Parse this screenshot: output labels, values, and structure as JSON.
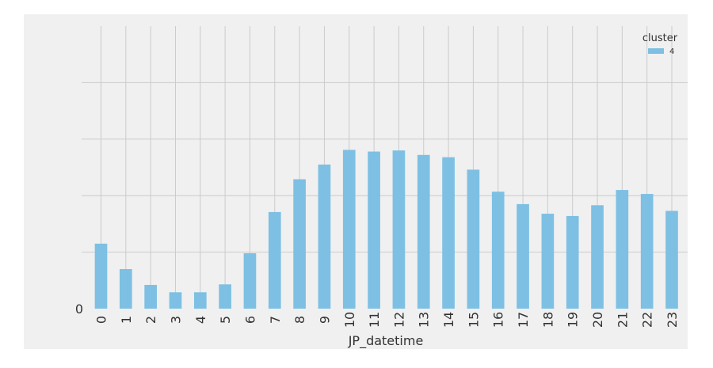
{
  "chart_data": {
    "type": "bar",
    "categories": [
      "0",
      "1",
      "2",
      "3",
      "4",
      "5",
      "6",
      "7",
      "8",
      "9",
      "10",
      "11",
      "12",
      "13",
      "14",
      "15",
      "16",
      "17",
      "18",
      "19",
      "20",
      "21",
      "22",
      "23"
    ],
    "series": [
      {
        "name": "4",
        "color": "#7dc0e3",
        "values": [
          1.15,
          0.7,
          0.42,
          0.29,
          0.29,
          0.43,
          0.98,
          1.71,
          2.29,
          2.55,
          2.81,
          2.78,
          2.8,
          2.72,
          2.68,
          2.46,
          2.07,
          1.85,
          1.68,
          1.64,
          1.83,
          2.1,
          2.03,
          1.73
        ]
      }
    ],
    "xlabel": "JP_datetime",
    "ylabel": "",
    "ylim": [
      0,
      5
    ],
    "yticks": [
      0,
      1,
      2,
      3,
      4
    ],
    "ytick_labels": [
      "0",
      "",
      "",
      "",
      ""
    ],
    "grid": true,
    "legend": {
      "title": "cluster",
      "placement": "top-right"
    },
    "colors": {
      "background": "#f0f0f0",
      "grid": "#cbcbcb"
    }
  }
}
